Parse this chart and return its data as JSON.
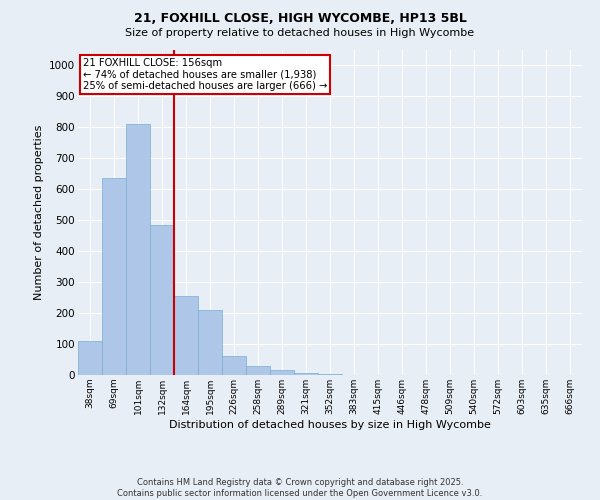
{
  "title1": "21, FOXHILL CLOSE, HIGH WYCOMBE, HP13 5BL",
  "title2": "Size of property relative to detached houses in High Wycombe",
  "xlabel": "Distribution of detached houses by size in High Wycombe",
  "ylabel": "Number of detached properties",
  "categories": [
    "38sqm",
    "69sqm",
    "101sqm",
    "132sqm",
    "164sqm",
    "195sqm",
    "226sqm",
    "258sqm",
    "289sqm",
    "321sqm",
    "352sqm",
    "383sqm",
    "415sqm",
    "446sqm",
    "478sqm",
    "509sqm",
    "540sqm",
    "572sqm",
    "603sqm",
    "635sqm",
    "666sqm"
  ],
  "values": [
    110,
    635,
    810,
    485,
    255,
    210,
    60,
    30,
    15,
    5,
    2,
    0,
    0,
    0,
    0,
    0,
    0,
    0,
    0,
    0,
    0
  ],
  "bar_color": "#aec6e8",
  "bar_edge_color": "#7aafd4",
  "vline_color": "#cc0000",
  "annotation_text": "21 FOXHILL CLOSE: 156sqm\n← 74% of detached houses are smaller (1,938)\n25% of semi-detached houses are larger (666) →",
  "annotation_box_color": "#ffffff",
  "annotation_box_edge": "#cc0000",
  "ylim": [
    0,
    1050
  ],
  "yticks": [
    0,
    100,
    200,
    300,
    400,
    500,
    600,
    700,
    800,
    900,
    1000
  ],
  "background_color": "#e8eef5",
  "plot_bg_color": "#e8eef5",
  "grid_color": "#ffffff",
  "footer1": "Contains HM Land Registry data © Crown copyright and database right 2025.",
  "footer2": "Contains public sector information licensed under the Open Government Licence v3.0."
}
